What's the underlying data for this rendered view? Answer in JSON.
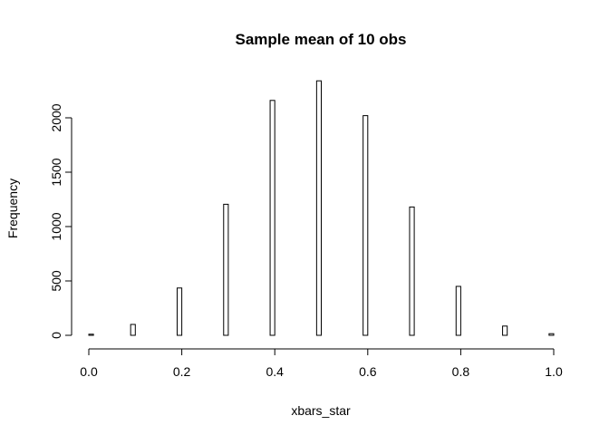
{
  "chart_data": {
    "type": "bar",
    "title": "Sample mean of 10 obs",
    "xlabel": "xbars_star",
    "ylabel": "Frequency",
    "xlim": [
      0.0,
      1.0
    ],
    "ylim": [
      0,
      2400
    ],
    "x_ticks": [
      0.0,
      0.2,
      0.4,
      0.6,
      0.8,
      1.0
    ],
    "x_tick_labels": [
      "0.0",
      "0.2",
      "0.4",
      "0.6",
      "0.8",
      "1.0"
    ],
    "y_ticks": [
      0,
      500,
      1000,
      1500,
      2000
    ],
    "y_tick_labels": [
      "0",
      "500",
      "1000",
      "1500",
      "2000"
    ],
    "bin_width": 0.01,
    "bins": [
      {
        "x0": 0.0,
        "x1": 0.01,
        "count": 10
      },
      {
        "x0": 0.09,
        "x1": 0.1,
        "count": 100
      },
      {
        "x0": 0.19,
        "x1": 0.2,
        "count": 435
      },
      {
        "x0": 0.29,
        "x1": 0.3,
        "count": 1205
      },
      {
        "x0": 0.39,
        "x1": 0.4,
        "count": 2160
      },
      {
        "x0": 0.49,
        "x1": 0.5,
        "count": 2340
      },
      {
        "x0": 0.59,
        "x1": 0.6,
        "count": 2020
      },
      {
        "x0": 0.69,
        "x1": 0.7,
        "count": 1180
      },
      {
        "x0": 0.79,
        "x1": 0.8,
        "count": 450
      },
      {
        "x0": 0.89,
        "x1": 0.9,
        "count": 85
      },
      {
        "x0": 0.99,
        "x1": 1.0,
        "count": 15
      }
    ],
    "grid": false,
    "legend": "none"
  }
}
